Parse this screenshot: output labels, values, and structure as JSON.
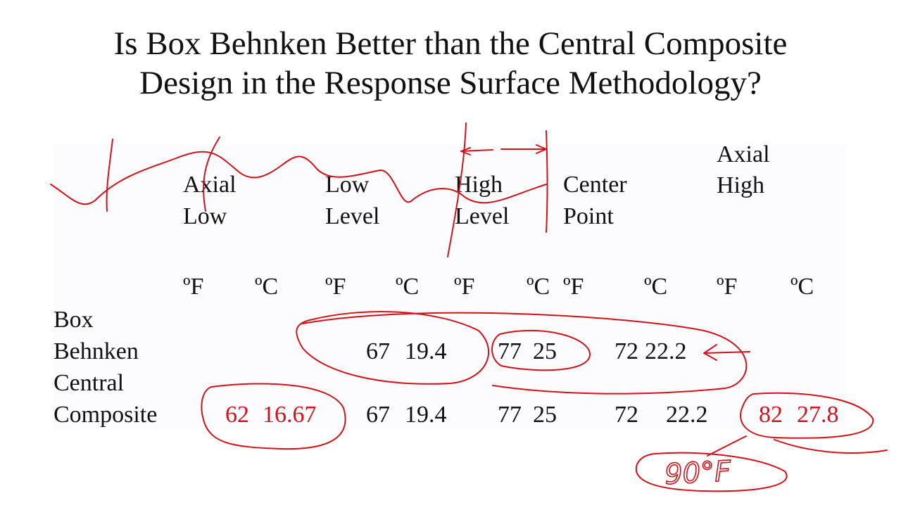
{
  "title": {
    "lines": [
      "Is Box Behnken Better than the Central Composite",
      "Design in the Response Surface Methodology?"
    ]
  },
  "table": {
    "groups": [
      {
        "lines": [
          "Axial",
          "Low"
        ]
      },
      {
        "lines": [
          "Low",
          "Level"
        ]
      },
      {
        "lines": [
          "High",
          "Level"
        ]
      },
      {
        "lines": [
          "Center",
          "Point"
        ]
      },
      {
        "lines": [
          "Axial",
          "High"
        ]
      }
    ],
    "units": [
      "ºF",
      "ºC",
      "ºF",
      "ºC",
      "ºF",
      "ºC",
      "ºF",
      "ºC",
      "ºF",
      "ºC"
    ],
    "rows": [
      {
        "label": [
          "Box",
          "Behnken"
        ],
        "cells": [
          null,
          null,
          67,
          19.4,
          77,
          25,
          72,
          22.2,
          null,
          null
        ]
      },
      {
        "label": [
          "Central",
          "Composite"
        ],
        "cells": [
          62,
          16.67,
          67,
          19.4,
          77,
          25,
          72,
          22.2,
          82,
          27.8
        ]
      }
    ]
  },
  "annotation": "90°F"
}
